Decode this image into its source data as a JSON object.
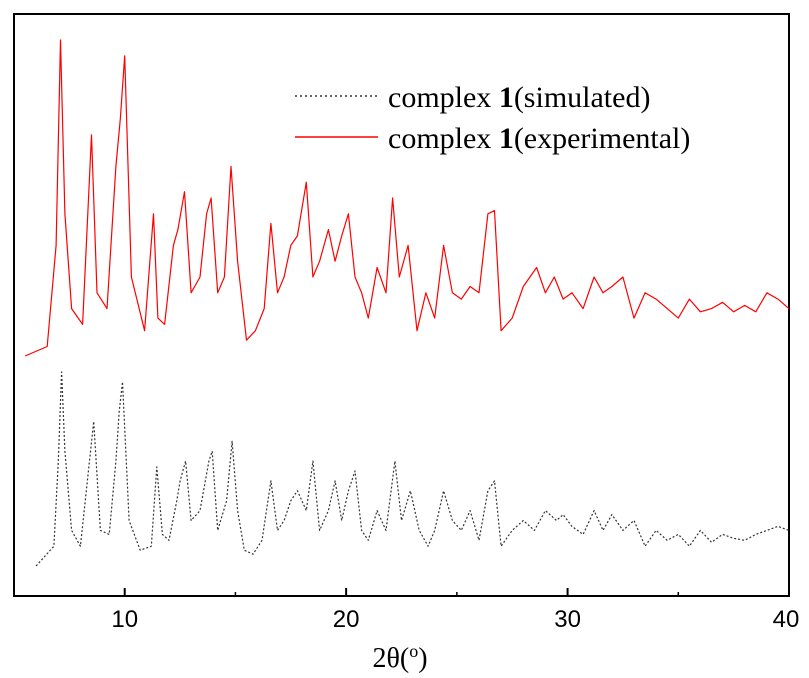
{
  "chart_data": {
    "type": "line",
    "xlabel_main": "2θ(",
    "xlabel_sup": "o",
    "xlabel_end": ")",
    "ylabel": "",
    "xlim": [
      5,
      40
    ],
    "x_ticks": [
      10,
      20,
      30,
      40
    ],
    "grid": false,
    "legend_position": "top-right",
    "series": [
      {
        "name_prefix": "complex ",
        "name_bold": "1",
        "name_suffix": "(simulated)",
        "color": "#333333",
        "style": "dotted",
        "baseline": 0.02,
        "x": [
          6.0,
          6.8,
          7.0,
          7.15,
          7.3,
          7.6,
          8.0,
          8.6,
          8.9,
          9.3,
          9.6,
          9.75,
          9.9,
          10.2,
          10.7,
          11.2,
          11.45,
          11.7,
          12.0,
          12.35,
          12.5,
          12.75,
          13.0,
          13.4,
          13.8,
          13.95,
          14.2,
          14.6,
          14.85,
          15.1,
          15.4,
          15.8,
          16.2,
          16.6,
          16.9,
          17.2,
          17.5,
          17.8,
          18.2,
          18.5,
          18.8,
          19.2,
          19.5,
          19.8,
          20.1,
          20.4,
          20.7,
          21.0,
          21.4,
          21.8,
          22.2,
          22.5,
          22.9,
          23.3,
          23.7,
          24.0,
          24.4,
          24.8,
          25.2,
          25.6,
          26.0,
          26.4,
          26.7,
          27.0,
          27.5,
          28.0,
          28.5,
          29.0,
          29.5,
          29.8,
          30.2,
          30.7,
          31.2,
          31.6,
          32.0,
          32.5,
          33.0,
          33.5,
          34.0,
          34.5,
          35.0,
          35.5,
          36.0,
          36.5,
          37.0,
          37.5,
          38.0,
          38.5,
          39.0,
          39.5,
          40.0
        ],
        "y": [
          0.02,
          0.12,
          0.55,
          1.0,
          0.6,
          0.2,
          0.12,
          0.75,
          0.2,
          0.18,
          0.55,
          0.8,
          0.95,
          0.25,
          0.1,
          0.12,
          0.52,
          0.18,
          0.15,
          0.35,
          0.45,
          0.55,
          0.25,
          0.3,
          0.55,
          0.6,
          0.2,
          0.35,
          0.65,
          0.3,
          0.1,
          0.08,
          0.15,
          0.45,
          0.2,
          0.25,
          0.35,
          0.4,
          0.3,
          0.55,
          0.2,
          0.3,
          0.45,
          0.25,
          0.4,
          0.5,
          0.2,
          0.15,
          0.3,
          0.2,
          0.55,
          0.25,
          0.4,
          0.2,
          0.12,
          0.2,
          0.4,
          0.25,
          0.2,
          0.3,
          0.15,
          0.4,
          0.45,
          0.12,
          0.2,
          0.25,
          0.2,
          0.3,
          0.25,
          0.28,
          0.22,
          0.18,
          0.3,
          0.2,
          0.28,
          0.2,
          0.25,
          0.12,
          0.2,
          0.15,
          0.18,
          0.12,
          0.2,
          0.14,
          0.18,
          0.16,
          0.15,
          0.18,
          0.2,
          0.22,
          0.2
        ]
      },
      {
        "name_prefix": "complex ",
        "name_bold": "1",
        "name_suffix": "(experimental)",
        "color": "#ff0000",
        "style": "solid",
        "baseline": 0.02,
        "x": [
          5.5,
          6.5,
          6.9,
          7.1,
          7.3,
          7.6,
          8.1,
          8.5,
          8.75,
          9.2,
          9.6,
          9.8,
          10.0,
          10.3,
          10.9,
          11.3,
          11.5,
          11.8,
          12.2,
          12.4,
          12.7,
          13.0,
          13.4,
          13.7,
          13.9,
          14.2,
          14.5,
          14.8,
          15.1,
          15.5,
          15.9,
          16.3,
          16.6,
          16.9,
          17.2,
          17.5,
          17.8,
          18.2,
          18.5,
          18.8,
          19.2,
          19.5,
          19.8,
          20.1,
          20.4,
          20.7,
          21.0,
          21.4,
          21.8,
          22.1,
          22.4,
          22.8,
          23.2,
          23.6,
          24.0,
          24.4,
          24.8,
          25.2,
          25.6,
          26.0,
          26.4,
          26.7,
          27.0,
          27.5,
          28.0,
          28.6,
          29.0,
          29.4,
          29.8,
          30.2,
          30.7,
          31.2,
          31.6,
          32.0,
          32.5,
          33.0,
          33.5,
          34.0,
          34.5,
          35.0,
          35.5,
          36.0,
          36.5,
          37.0,
          37.5,
          38.0,
          38.5,
          39.0,
          39.5,
          40.0
        ],
        "y": [
          0.0,
          0.03,
          0.35,
          1.0,
          0.45,
          0.15,
          0.1,
          0.7,
          0.2,
          0.15,
          0.6,
          0.75,
          0.95,
          0.25,
          0.08,
          0.45,
          0.12,
          0.1,
          0.35,
          0.4,
          0.52,
          0.2,
          0.25,
          0.45,
          0.5,
          0.2,
          0.25,
          0.6,
          0.3,
          0.05,
          0.08,
          0.15,
          0.42,
          0.2,
          0.25,
          0.35,
          0.38,
          0.55,
          0.25,
          0.3,
          0.4,
          0.3,
          0.38,
          0.45,
          0.25,
          0.2,
          0.12,
          0.28,
          0.2,
          0.5,
          0.25,
          0.35,
          0.08,
          0.2,
          0.12,
          0.35,
          0.2,
          0.18,
          0.22,
          0.2,
          0.45,
          0.46,
          0.08,
          0.12,
          0.22,
          0.28,
          0.2,
          0.25,
          0.18,
          0.2,
          0.15,
          0.25,
          0.2,
          0.22,
          0.25,
          0.12,
          0.2,
          0.18,
          0.15,
          0.12,
          0.18,
          0.14,
          0.15,
          0.17,
          0.14,
          0.16,
          0.14,
          0.2,
          0.18,
          0.15
        ]
      }
    ]
  }
}
